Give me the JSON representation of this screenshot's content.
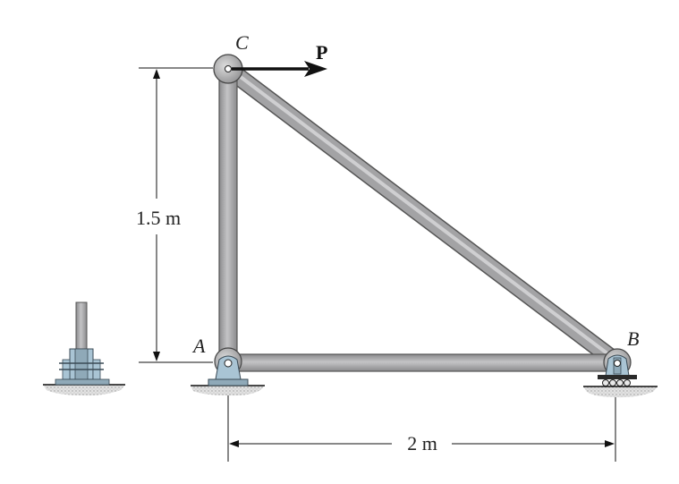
{
  "labels": {
    "node_c": "C",
    "node_a": "A",
    "node_b": "B",
    "force": "P"
  },
  "dimensions": {
    "height": "1.5 m",
    "width": "2 m"
  },
  "colors": {
    "member_fill": "#a3a3a5",
    "member_edge": "#555555",
    "support_fill": "#a9c4d4",
    "support_edge": "#3a4a55",
    "ground": "#c8c8c8",
    "line": "#111111"
  }
}
